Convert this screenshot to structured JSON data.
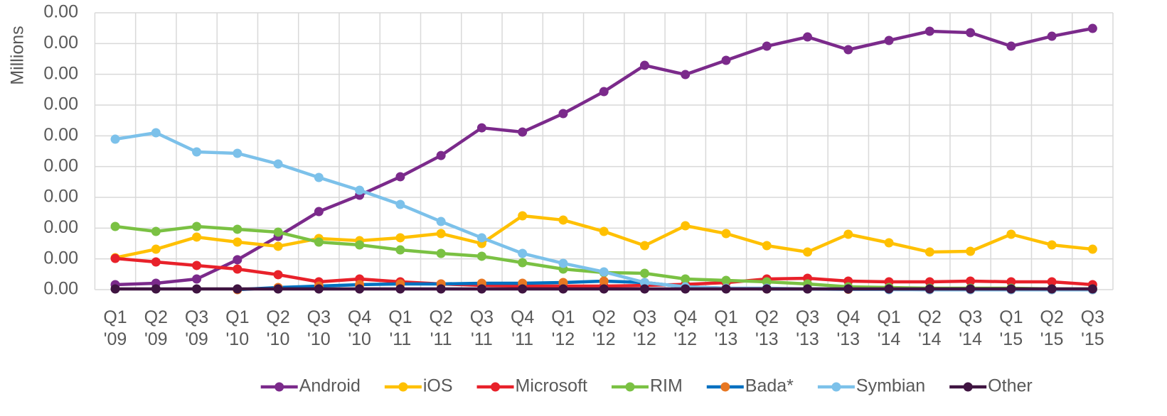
{
  "chart_data": {
    "type": "line",
    "y_label": "Millions",
    "categories": [
      "Q1 '09",
      "Q2 '09",
      "Q3 '09",
      "Q1 '10",
      "Q2 '10",
      "Q3 '10",
      "Q4 '10",
      "Q1 '11",
      "Q2 '11",
      "Q3 '11",
      "Q4 '11",
      "Q1 '12",
      "Q2 '12",
      "Q3 '12",
      "Q4 '12",
      "Q1 '13",
      "Q2 '13",
      "Q3 '13",
      "Q4 '13",
      "Q1 '14",
      "Q2 '14",
      "Q3 '14",
      "Q1 '15",
      "Q2 '15",
      "Q3 '15"
    ],
    "ylim": [
      0,
      315
    ],
    "yticks": [
      {
        "value": 0,
        "label": "0.00"
      },
      {
        "value": 35,
        "label": "0.00"
      },
      {
        "value": 70,
        "label": "0.00"
      },
      {
        "value": 105,
        "label": "0.00"
      },
      {
        "value": 140,
        "label": "0.00"
      },
      {
        "value": 175,
        "label": "0.00"
      },
      {
        "value": 210,
        "label": "0.00"
      },
      {
        "value": 245,
        "label": "0.00"
      },
      {
        "value": 280,
        "label": "0.00"
      },
      {
        "value": 315,
        "label": "0.00"
      }
    ],
    "grid": true,
    "legend": "bottom",
    "series": [
      {
        "name": "Android",
        "color": "#7b2a8b",
        "values": [
          5.7,
          7.3,
          12.1,
          34,
          60.6,
          88.8,
          107.4,
          128.4,
          152.6,
          184.1,
          179.3,
          200.3,
          225.3,
          255.2,
          244.7,
          260.9,
          277,
          287.5,
          273,
          283.5,
          294,
          292.4,
          277,
          288.3,
          297.2
        ]
      },
      {
        "name": "iOS",
        "color": "#ffc000",
        "values": [
          36.3,
          46,
          59.8,
          54.1,
          49.3,
          58.2,
          55.7,
          59,
          63.8,
          52.5,
          84,
          79.2,
          66.2,
          50.1,
          72.7,
          63.8,
          50.1,
          42.8,
          63,
          53.3,
          42.8,
          43.6,
          63,
          50.9,
          46
        ]
      },
      {
        "name": "Microsoft",
        "color": "#e8212a",
        "values": [
          35.5,
          31.5,
          27.5,
          23.4,
          17,
          8.9,
          12.1,
          8.9,
          6.5,
          4.8,
          4,
          4,
          4,
          4.8,
          6,
          8,
          12.1,
          12.9,
          9.7,
          8.9,
          8.9,
          9.7,
          8.9,
          8.9,
          5.7
        ]
      },
      {
        "name": "RIM",
        "color": "#7ac143",
        "values": [
          71.9,
          66.2,
          71.9,
          68.7,
          65.4,
          54.1,
          50.9,
          45.2,
          41.2,
          38,
          30.7,
          23.4,
          19.4,
          18.6,
          12.1,
          10.5,
          8.9,
          6.5,
          3.2,
          2.4,
          1.6,
          1.6,
          1.6,
          0.8,
          0.8
        ]
      },
      {
        "name": "Bada*",
        "color": "#0070c0",
        "marker_color": "#e87722",
        "values": [
          null,
          null,
          null,
          0,
          2.4,
          4,
          5.7,
          6.5,
          6.5,
          7.3,
          7.3,
          8.1,
          9.7,
          8.1,
          3.2,
          1.6,
          0.8,
          0.8,
          0.4,
          0.4,
          0,
          0,
          0,
          0,
          0
        ]
      },
      {
        "name": "Symbian",
        "color": "#7cc1ea",
        "values": [
          171.2,
          178.5,
          156.7,
          155.1,
          143,
          127.6,
          113.1,
          96.9,
          77.5,
          59,
          41.2,
          29.9,
          20.2,
          8.1,
          3.2,
          1.6,
          1.6,
          0.8,
          0.8,
          0,
          0,
          0,
          0,
          0,
          0
        ]
      },
      {
        "name": "Other",
        "color": "#3f1441",
        "values": [
          0.8,
          0.8,
          0.8,
          0.8,
          0.8,
          0.8,
          0.8,
          0.8,
          0.8,
          0.8,
          0.8,
          0.8,
          0.8,
          0.8,
          0.8,
          0.8,
          0.8,
          0.8,
          0.8,
          0.8,
          0.8,
          0.8,
          0.8,
          0.8,
          0.8
        ]
      }
    ]
  }
}
